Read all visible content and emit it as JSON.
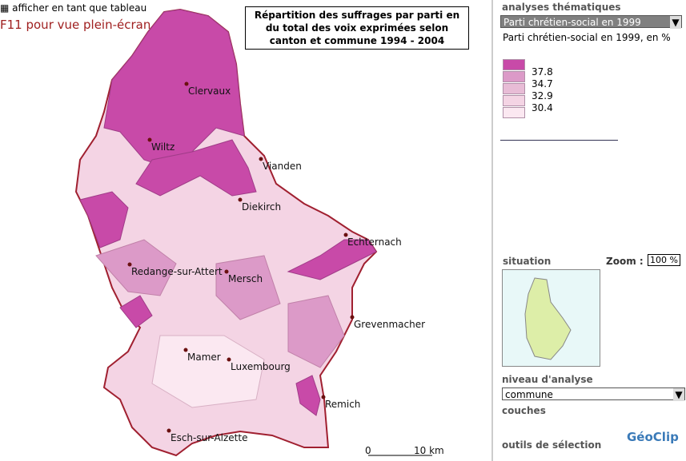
{
  "toolbar": {
    "table_link": "afficher en tant que tableau",
    "fullscreen_hint": "F11 pour vue plein-écran"
  },
  "map": {
    "title_lines": [
      "Répartition des suffrages par parti en",
      "du total des voix exprimées selon",
      "canton et commune 1994 - 2004"
    ],
    "places": [
      "Clervaux",
      "Wiltz",
      "Vianden",
      "Diekirch",
      "Echternach",
      "Redange-sur-Attert",
      "Mersch",
      "Grevenmacher",
      "Mamer",
      "Luxembourg",
      "Remich",
      "Esch-sur-Alzette"
    ],
    "scale": {
      "start": "0",
      "end": "10 km"
    }
  },
  "panel": {
    "analyses_heading": "analyses thématiques",
    "indicator": "Parti chrétien-social en 1999",
    "legend_title": "Parti chrétien-social en 1999, en %",
    "legend_breaks": [
      37.8,
      34.7,
      32.9,
      30.4
    ],
    "situation": "situation",
    "zoom_label": "Zoom :",
    "zoom_value": "100 %",
    "level_heading": "niveau d'analyse",
    "level": "commune",
    "layers": "couches",
    "selection": "outils de sélection",
    "logo": "GéoClip"
  }
}
